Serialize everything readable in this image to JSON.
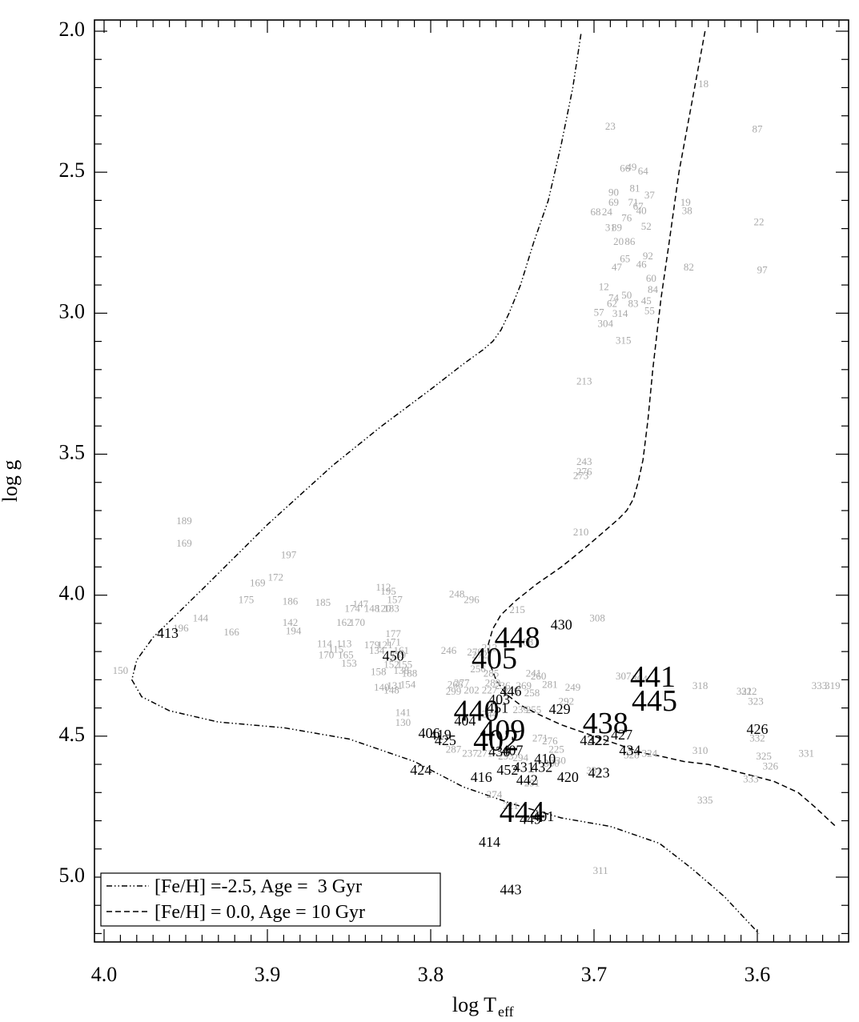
{
  "chart_data": {
    "type": "scatter",
    "xlabel": "log T",
    "xlabel_sub": "eff",
    "ylabel": "log g",
    "xlim": [
      4.0,
      3.55
    ],
    "ylim": [
      5.2,
      1.99
    ],
    "x_reversed": true,
    "y_reversed": true,
    "x_ticks": [
      "4.0",
      "3.9",
      "3.8",
      "3.7",
      "3.6"
    ],
    "x_tick_values": [
      4.0,
      3.9,
      3.8,
      3.7,
      3.6
    ],
    "y_ticks": [
      "2.0",
      "2.5",
      "3.0",
      "3.5",
      "4.0",
      "4.5",
      "5.0"
    ],
    "y_tick_values": [
      2.0,
      2.5,
      3.0,
      3.5,
      4.0,
      4.5,
      5.0
    ],
    "legend_position": "bottom-left",
    "colors": {
      "faint_label": "#a9a9a9",
      "dark_label": "#000000",
      "curve": "#000000"
    },
    "series": [
      {
        "name": "[Fe/H] =-2.5, Age =  3 Gyr",
        "style": "dash-dot-dot",
        "x": [
          3.708,
          3.713,
          3.72,
          3.728,
          3.737,
          3.745,
          3.752,
          3.757,
          3.762,
          3.768,
          3.78,
          3.8,
          3.83,
          3.86,
          3.9,
          3.94,
          3.97,
          3.98,
          3.983,
          3.977,
          3.96,
          3.93,
          3.89,
          3.85,
          3.81,
          3.78,
          3.75,
          3.72,
          3.69,
          3.66,
          3.64,
          3.62,
          3.599
        ],
        "y": [
          2.01,
          2.2,
          2.4,
          2.6,
          2.75,
          2.9,
          3.0,
          3.06,
          3.1,
          3.13,
          3.18,
          3.27,
          3.4,
          3.54,
          3.75,
          3.98,
          4.15,
          4.23,
          4.3,
          4.36,
          4.41,
          4.45,
          4.47,
          4.51,
          4.59,
          4.68,
          4.74,
          4.79,
          4.82,
          4.88,
          4.97,
          5.07,
          5.2
        ]
      },
      {
        "name": "[Fe/H] = 0.0, Age = 10 Gyr",
        "style": "dashed",
        "x": [
          3.632,
          3.64,
          3.648,
          3.654,
          3.659,
          3.664,
          3.667,
          3.67,
          3.673,
          3.676,
          3.68,
          3.685,
          3.693,
          3.705,
          3.72,
          3.735,
          3.748,
          3.757,
          3.762,
          3.765,
          3.764,
          3.76,
          3.754,
          3.745,
          3.735,
          3.72,
          3.705,
          3.69,
          3.68,
          3.67,
          3.66,
          3.645,
          3.63,
          3.61,
          3.59,
          3.575,
          3.565,
          3.552
        ],
        "y": [
          2.0,
          2.25,
          2.5,
          2.75,
          2.95,
          3.2,
          3.38,
          3.52,
          3.6,
          3.66,
          3.7,
          3.73,
          3.77,
          3.83,
          3.9,
          3.96,
          4.02,
          4.07,
          4.12,
          4.18,
          4.24,
          4.3,
          4.35,
          4.39,
          4.42,
          4.46,
          4.49,
          4.52,
          4.54,
          4.56,
          4.57,
          4.59,
          4.6,
          4.63,
          4.66,
          4.7,
          4.75,
          4.82
        ]
      }
    ],
    "labels_faint": [
      [
        "18",
        3.633,
        2.19
      ],
      [
        "23",
        3.69,
        2.34
      ],
      [
        "87",
        3.6,
        2.35
      ],
      [
        "66",
        3.681,
        2.49
      ],
      [
        "49",
        3.677,
        2.485
      ],
      [
        "64",
        3.67,
        2.5
      ],
      [
        "81",
        3.675,
        2.56
      ],
      [
        "90",
        3.688,
        2.575
      ],
      [
        "37",
        3.666,
        2.585
      ],
      [
        "19",
        3.644,
        2.61
      ],
      [
        "38",
        3.643,
        2.64
      ],
      [
        "22",
        3.599,
        2.68
      ],
      [
        "71",
        3.676,
        2.61
      ],
      [
        "69",
        3.688,
        2.61
      ],
      [
        "67",
        3.673,
        2.625
      ],
      [
        "68",
        3.699,
        2.645
      ],
      [
        "24",
        3.692,
        2.645
      ],
      [
        "40",
        3.671,
        2.64
      ],
      [
        "76",
        3.68,
        2.665
      ],
      [
        "31",
        3.69,
        2.7
      ],
      [
        "89",
        3.686,
        2.7
      ],
      [
        "52",
        3.668,
        2.695
      ],
      [
        "20",
        3.685,
        2.75
      ],
      [
        "86",
        3.678,
        2.75
      ],
      [
        "97",
        3.597,
        2.85
      ],
      [
        "92",
        3.667,
        2.8
      ],
      [
        "65",
        3.681,
        2.81
      ],
      [
        "46",
        3.671,
        2.83
      ],
      [
        "82",
        3.642,
        2.84
      ],
      [
        "47",
        3.686,
        2.84
      ],
      [
        "60",
        3.665,
        2.88
      ],
      [
        "84",
        3.664,
        2.92
      ],
      [
        "12",
        3.694,
        2.91
      ],
      [
        "74",
        3.688,
        2.95
      ],
      [
        "50",
        3.68,
        2.94
      ],
      [
        "45",
        3.668,
        2.96
      ],
      [
        "62",
        3.689,
        2.97
      ],
      [
        "83",
        3.676,
        2.97
      ],
      [
        "55",
        3.666,
        2.995
      ],
      [
        "57",
        3.697,
        3.0
      ],
      [
        "314",
        3.684,
        3.005
      ],
      [
        "304",
        3.693,
        3.04
      ],
      [
        "315",
        3.682,
        3.1
      ],
      [
        "213",
        3.706,
        3.245
      ],
      [
        "243",
        3.706,
        3.53
      ],
      [
        "276",
        3.706,
        3.565
      ],
      [
        "273",
        3.708,
        3.58
      ],
      [
        "210",
        3.708,
        3.78
      ],
      [
        "189",
        3.951,
        3.74
      ],
      [
        "169",
        3.951,
        3.82
      ],
      [
        "197",
        3.887,
        3.86
      ],
      [
        "172",
        3.895,
        3.94
      ],
      [
        "169",
        3.906,
        3.96
      ],
      [
        "175",
        3.913,
        4.02
      ],
      [
        "186",
        3.886,
        4.025
      ],
      [
        "185",
        3.866,
        4.03
      ],
      [
        "112",
        3.829,
        3.975
      ],
      [
        "195",
        3.826,
        3.99
      ],
      [
        "157",
        3.822,
        4.02
      ],
      [
        "147",
        3.843,
        4.035
      ],
      [
        "174",
        3.848,
        4.05
      ],
      [
        "148",
        3.836,
        4.05
      ],
      [
        "120",
        3.829,
        4.05
      ],
      [
        "183",
        3.824,
        4.05
      ],
      [
        "144",
        3.941,
        4.085
      ],
      [
        "142",
        3.886,
        4.1
      ],
      [
        "162",
        3.853,
        4.1
      ],
      [
        "170",
        3.845,
        4.1
      ],
      [
        "196",
        3.953,
        4.12
      ],
      [
        "194",
        3.884,
        4.13
      ],
      [
        "166",
        3.922,
        4.135
      ],
      [
        "177",
        3.823,
        4.14
      ],
      [
        "114",
        3.865,
        4.175
      ],
      [
        "113",
        3.853,
        4.175
      ],
      [
        "179",
        3.836,
        4.18
      ],
      [
        "121",
        3.828,
        4.18
      ],
      [
        "171",
        3.823,
        4.17
      ],
      [
        "115",
        3.858,
        4.195
      ],
      [
        "134",
        3.833,
        4.2
      ],
      [
        "161",
        3.818,
        4.2
      ],
      [
        "170",
        3.864,
        4.215
      ],
      [
        "165",
        3.852,
        4.215
      ],
      [
        "139",
        3.82,
        4.215
      ],
      [
        "153",
        3.85,
        4.245
      ],
      [
        "150",
        3.99,
        4.27
      ],
      [
        "152",
        3.824,
        4.25
      ],
      [
        "155",
        3.816,
        4.25
      ],
      [
        "138",
        3.818,
        4.27
      ],
      [
        "158",
        3.832,
        4.275
      ],
      [
        "188",
        3.813,
        4.28
      ],
      [
        "140",
        3.83,
        4.33
      ],
      [
        "131",
        3.822,
        4.325
      ],
      [
        "154",
        3.814,
        4.32
      ],
      [
        "148",
        3.824,
        4.34
      ],
      [
        "141",
        3.817,
        4.42
      ],
      [
        "130",
        3.817,
        4.455
      ],
      [
        "248",
        3.784,
        4.0
      ],
      [
        "296",
        3.775,
        4.02
      ],
      [
        "215",
        3.747,
        4.055
      ],
      [
        "308",
        3.698,
        4.085
      ],
      [
        "212",
        3.764,
        4.19
      ],
      [
        "246",
        3.789,
        4.2
      ],
      [
        "278",
        3.773,
        4.205
      ],
      [
        "272",
        3.77,
        4.215
      ],
      [
        "188",
        3.742,
        4.17
      ],
      [
        "256",
        3.771,
        4.265
      ],
      [
        "285",
        3.763,
        4.28
      ],
      [
        "307",
        3.682,
        4.29
      ],
      [
        "304",
        3.672,
        4.3
      ],
      [
        "318",
        3.635,
        4.325
      ],
      [
        "321",
        3.608,
        4.345
      ],
      [
        "322",
        3.605,
        4.345
      ],
      [
        "323",
        3.601,
        4.38
      ],
      [
        "333",
        3.562,
        4.325
      ],
      [
        "319",
        3.554,
        4.325
      ],
      [
        "260",
        3.734,
        4.29
      ],
      [
        "241",
        3.737,
        4.28
      ],
      [
        "281",
        3.727,
        4.32
      ],
      [
        "249",
        3.713,
        4.33
      ],
      [
        "266",
        3.785,
        4.32
      ],
      [
        "277",
        3.781,
        4.315
      ],
      [
        "289",
        3.762,
        4.315
      ],
      [
        "236",
        3.756,
        4.325
      ],
      [
        "269",
        3.743,
        4.325
      ],
      [
        "202",
        3.775,
        4.34
      ],
      [
        "227",
        3.764,
        4.34
      ],
      [
        "299",
        3.786,
        4.345
      ],
      [
        "235",
        3.751,
        4.345
      ],
      [
        "258",
        3.738,
        4.35
      ],
      [
        "292",
        3.717,
        4.38
      ],
      [
        "255",
        3.737,
        4.41
      ],
      [
        "239",
        3.745,
        4.41
      ],
      [
        "244",
        3.764,
        4.425
      ],
      [
        "271",
        3.733,
        4.51
      ],
      [
        "276",
        3.727,
        4.52
      ],
      [
        "225",
        3.723,
        4.55
      ],
      [
        "237",
        3.776,
        4.565
      ],
      [
        "271",
        3.767,
        4.565
      ],
      [
        "294",
        3.745,
        4.58
      ],
      [
        "293",
        3.754,
        4.575
      ],
      [
        "330",
        3.722,
        4.59
      ],
      [
        "300",
        3.726,
        4.6
      ],
      [
        "291",
        3.738,
        4.67
      ],
      [
        "274",
        3.761,
        4.71
      ],
      [
        "221",
        3.751,
        4.75
      ],
      [
        "331",
        3.7,
        4.625
      ],
      [
        "328",
        3.677,
        4.57
      ],
      [
        "324",
        3.666,
        4.565
      ],
      [
        "310",
        3.635,
        4.555
      ],
      [
        "332",
        3.6,
        4.51
      ],
      [
        "325",
        3.596,
        4.575
      ],
      [
        "326",
        3.592,
        4.61
      ],
      [
        "331",
        3.57,
        4.565
      ],
      [
        "333",
        3.604,
        4.655
      ],
      [
        "335",
        3.632,
        4.73
      ],
      [
        "311",
        3.696,
        4.98
      ],
      [
        "287",
        3.786,
        4.55
      ]
    ],
    "labels_dark": [
      [
        "413",
        3.961,
        4.14,
        20
      ],
      [
        "430",
        3.72,
        4.11,
        20
      ],
      [
        "450",
        3.823,
        4.22,
        20
      ],
      [
        "406",
        3.801,
        4.495,
        20
      ],
      [
        "419",
        3.794,
        4.5,
        20
      ],
      [
        "425",
        3.791,
        4.52,
        20
      ],
      [
        "404",
        3.779,
        4.45,
        20
      ],
      [
        "403",
        3.758,
        4.375,
        20
      ],
      [
        "446",
        3.751,
        4.345,
        20
      ],
      [
        "451",
        3.759,
        4.405,
        20
      ],
      [
        "429",
        3.721,
        4.41,
        20
      ],
      [
        "427",
        3.683,
        4.5,
        20
      ],
      [
        "422",
        3.697,
        4.52,
        20
      ],
      [
        "432",
        3.702,
        4.52,
        20
      ],
      [
        "434",
        3.678,
        4.555,
        20
      ],
      [
        "426",
        3.6,
        4.48,
        20
      ],
      [
        "424",
        3.806,
        4.625,
        20
      ],
      [
        "416",
        3.769,
        4.65,
        20
      ],
      [
        "442",
        3.741,
        4.66,
        20
      ],
      [
        "452",
        3.753,
        4.625,
        20
      ],
      [
        "431",
        3.743,
        4.615,
        20
      ],
      [
        "432",
        3.732,
        4.615,
        20
      ],
      [
        "410",
        3.73,
        4.585,
        20
      ],
      [
        "420",
        3.716,
        4.65,
        20
      ],
      [
        "423",
        3.697,
        4.635,
        20
      ],
      [
        "436",
        3.758,
        4.56,
        20
      ],
      [
        "407",
        3.75,
        4.555,
        20
      ],
      [
        "401",
        3.731,
        4.79,
        20
      ],
      [
        "449",
        3.739,
        4.8,
        20
      ],
      [
        "414",
        3.764,
        4.88,
        20
      ],
      [
        "443",
        3.751,
        5.05,
        20
      ],
      [
        "448",
        3.747,
        4.16,
        36
      ],
      [
        "405",
        3.761,
        4.235,
        36
      ],
      [
        "441",
        3.664,
        4.3,
        36
      ],
      [
        "445",
        3.663,
        4.385,
        36
      ],
      [
        "440",
        3.772,
        4.42,
        36
      ],
      [
        "438",
        3.693,
        4.465,
        36
      ],
      [
        "409",
        3.756,
        4.49,
        36
      ],
      [
        "402",
        3.76,
        4.525,
        36
      ],
      [
        "444",
        3.744,
        4.78,
        36
      ]
    ]
  }
}
